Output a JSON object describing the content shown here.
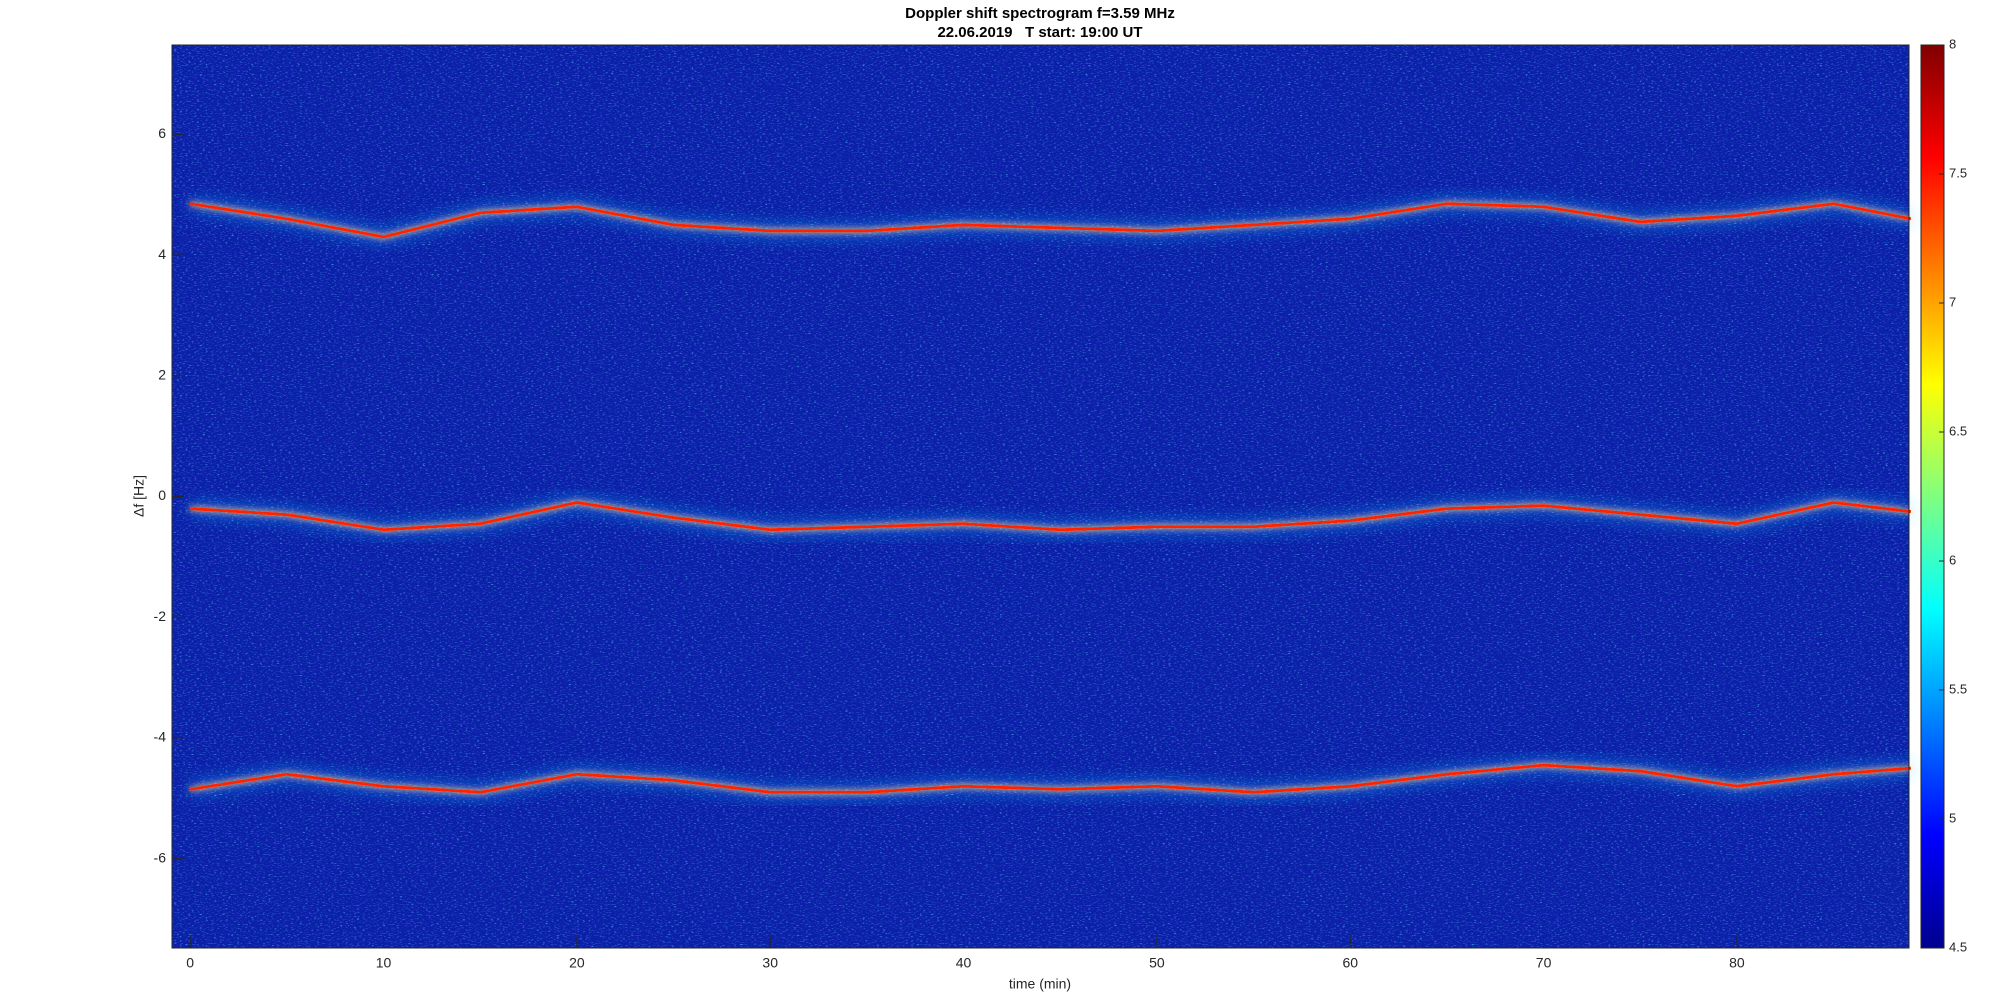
{
  "chart_data": {
    "type": "spectrogram",
    "title": "Doppler shift spectrogram f=3.59 MHz",
    "subtitle": "22.06.2019   T start: 19:00 UT",
    "x_label": "time (min)",
    "y_label": "Δf [Hz]",
    "x": [
      0,
      5,
      10,
      15,
      20,
      25,
      30,
      35,
      40,
      45,
      50,
      55,
      60,
      65,
      70,
      75,
      80,
      85,
      89
    ],
    "series": [
      {
        "color": "#ff2000",
        "values": [
          4.85,
          4.6,
          4.3,
          4.7,
          4.8,
          4.5,
          4.4,
          4.4,
          4.5,
          4.45,
          4.4,
          4.5,
          4.6,
          4.85,
          4.8,
          4.55,
          4.65,
          4.85,
          4.6
        ]
      },
      {
        "color": "#ff2000",
        "values": [
          -0.2,
          -0.3,
          -0.55,
          -0.45,
          -0.1,
          -0.35,
          -0.55,
          -0.5,
          -0.45,
          -0.55,
          -0.5,
          -0.5,
          -0.4,
          -0.2,
          -0.15,
          -0.3,
          -0.45,
          -0.1,
          -0.25
        ]
      },
      {
        "color": "#ff2000",
        "values": [
          -4.85,
          -4.6,
          -4.8,
          -4.9,
          -4.6,
          -4.7,
          -4.9,
          -4.9,
          -4.8,
          -4.85,
          -4.8,
          -4.9,
          -4.8,
          -4.6,
          -4.45,
          -4.55,
          -4.8,
          -4.6,
          -4.5
        ]
      }
    ],
    "xlim": [
      -0.94,
      88.9
    ],
    "ylim": [
      -7.48,
      7.48
    ],
    "xticks": [
      0,
      10,
      20,
      30,
      40,
      50,
      60,
      70,
      80
    ],
    "yticks": [
      -6,
      -4,
      -2,
      0,
      2,
      4,
      6
    ],
    "colormap": "jet",
    "background_color": "#0b1fa8",
    "colorbar": {
      "lim": [
        4.5,
        8
      ],
      "ticks": [
        4.5,
        5,
        5.5,
        6,
        6.5,
        7,
        7.5,
        8
      ]
    }
  }
}
